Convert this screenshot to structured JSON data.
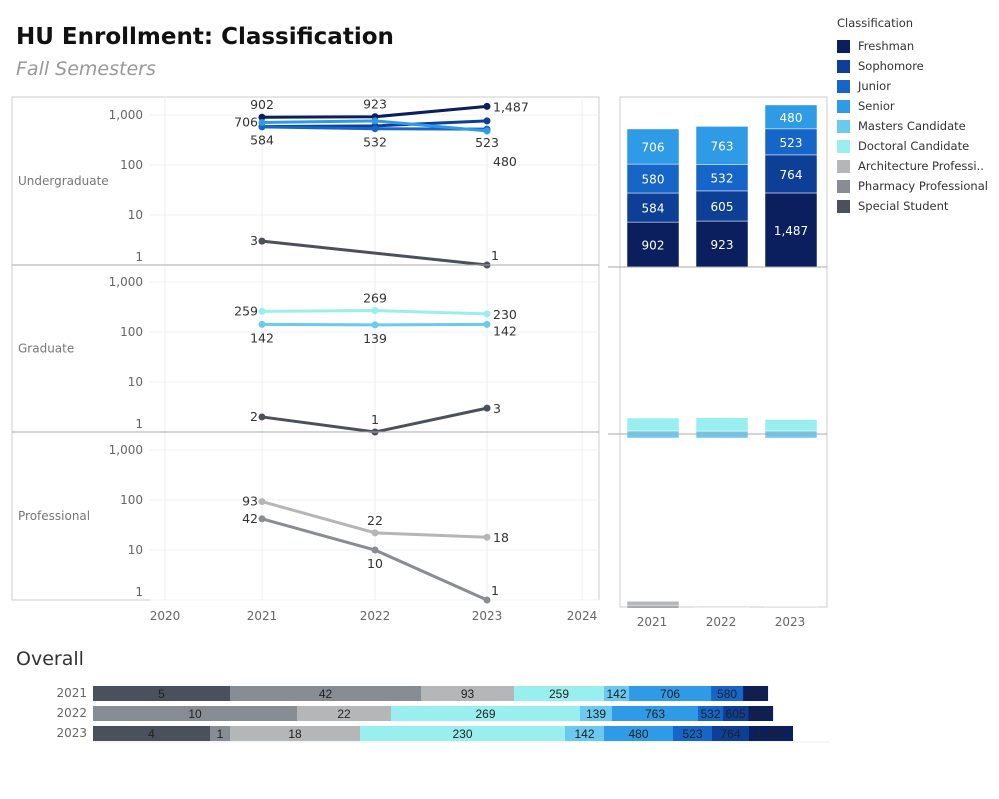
{
  "title": "HU Enrollment: Classification",
  "subtitle": "Fall Semesters",
  "overall_title": "Overall",
  "legend": {
    "title": "Classification",
    "items": [
      {
        "name": "Freshman",
        "color": "#0b1f5e"
      },
      {
        "name": "Sophomore",
        "color": "#0c3f95"
      },
      {
        "name": "Junior",
        "color": "#1566c8"
      },
      {
        "name": "Senior",
        "color": "#2f9ae6"
      },
      {
        "name": "Masters Candidate",
        "color": "#6ac9ee"
      },
      {
        "name": "Doctoral Candidate",
        "color": "#98efee"
      },
      {
        "name": "Architecture Professi..",
        "color": "#b4b6b7"
      },
      {
        "name": "Pharmacy Professional",
        "color": "#878d92"
      },
      {
        "name": "Special Student",
        "color": "#4a505c"
      }
    ]
  },
  "chart_data": {
    "type": "line",
    "years": [
      "2021",
      "2022",
      "2023"
    ],
    "x_ticks": [
      "2020",
      "2021",
      "2022",
      "2023",
      "2024"
    ],
    "y_ticks": [
      "1,000",
      "100",
      "10",
      "1"
    ],
    "y_scale": "log",
    "panels": [
      {
        "label": "Undergraduate",
        "series": [
          {
            "name": "Freshman",
            "values": [
              902,
              923,
              1487
            ]
          },
          {
            "name": "Sophomore",
            "values": [
              584,
              605,
              764
            ]
          },
          {
            "name": "Junior",
            "values": [
              580,
              532,
              523
            ]
          },
          {
            "name": "Senior",
            "values": [
              706,
              763,
              480
            ]
          },
          {
            "name": "Special Student",
            "values": [
              3,
              null,
              1
            ]
          }
        ],
        "labels": [
          [
            "902",
            0,
            902,
            "above"
          ],
          [
            "923",
            1,
            923,
            "above"
          ],
          [
            "1,487",
            2,
            1487,
            "right"
          ],
          [
            "706",
            0,
            706,
            "left"
          ],
          [
            "584",
            0,
            584,
            "below"
          ],
          [
            "532",
            1,
            532,
            "below"
          ],
          [
            "523",
            2,
            523,
            "below"
          ],
          [
            "480",
            2,
            480,
            "right"
          ],
          [
            "3",
            0,
            3,
            "left"
          ],
          [
            "1",
            2,
            1,
            "aboveright"
          ]
        ],
        "stack": [
          [
            902,
            584,
            580,
            706
          ],
          [
            923,
            605,
            532,
            763
          ],
          [
            1487,
            764,
            523,
            480
          ]
        ],
        "stack_labels": true
      },
      {
        "label": "Graduate",
        "series": [
          {
            "name": "Doctoral Candidate",
            "values": [
              259,
              269,
              230
            ]
          },
          {
            "name": "Masters Candidate",
            "values": [
              142,
              139,
              142
            ]
          },
          {
            "name": "Special Student",
            "values": [
              2,
              1,
              3
            ]
          }
        ],
        "labels": [
          [
            "259",
            0,
            259,
            "left"
          ],
          [
            "269",
            1,
            269,
            "above"
          ],
          [
            "230",
            2,
            230,
            "right"
          ],
          [
            "142",
            0,
            142,
            "below"
          ],
          [
            "139",
            1,
            139,
            "below"
          ],
          [
            "142",
            2,
            142,
            "right"
          ],
          [
            "2",
            0,
            2,
            "left"
          ],
          [
            "1",
            1,
            1,
            "above"
          ],
          [
            "3",
            2,
            3,
            "right"
          ]
        ],
        "stack": [
          [
            142,
            259
          ],
          [
            139,
            269
          ],
          [
            142,
            230
          ]
        ]
      },
      {
        "label": "Professional",
        "series": [
          {
            "name": "Architecture Professional",
            "values": [
              93,
              22,
              18
            ]
          },
          {
            "name": "Pharmacy Professional",
            "values": [
              42,
              10,
              1
            ]
          }
        ],
        "labels": [
          [
            "93",
            0,
            93,
            "left"
          ],
          [
            "22",
            1,
            22,
            "above"
          ],
          [
            "18",
            2,
            18,
            "right"
          ],
          [
            "42",
            0,
            42,
            "left"
          ],
          [
            "10",
            1,
            10,
            "below"
          ],
          [
            "1",
            2,
            1,
            "aboveright"
          ]
        ],
        "stack": [
          [
            42,
            93
          ],
          [
            10,
            22
          ],
          [
            1,
            18
          ]
        ]
      }
    ],
    "overall": [
      {
        "year": "2021",
        "segments": [
          [
            "5",
            8,
            137
          ],
          [
            "42",
            7,
            191
          ],
          [
            "93",
            6,
            93
          ],
          [
            "259",
            5,
            90
          ],
          [
            "142",
            4,
            16
          ],
          [
            "706",
            3,
            82
          ],
          [
            "580",
            2,
            32
          ],
          [
            "902",
            0,
            17
          ]
        ]
      },
      {
        "year": "2022",
        "segments": [
          [
            "10",
            7,
            204
          ],
          [
            "22",
            6,
            94
          ],
          [
            "269",
            5,
            189
          ],
          [
            "139",
            4,
            32
          ],
          [
            "763",
            3,
            86
          ],
          [
            "532",
            2,
            20
          ],
          [
            "605",
            1,
            22
          ],
          [
            "923",
            0,
            18
          ]
        ]
      },
      {
        "year": "2023",
        "segments": [
          [
            "4",
            8,
            117
          ],
          [
            "1",
            7,
            20
          ],
          [
            "18",
            6,
            130
          ],
          [
            "230",
            5,
            205
          ],
          [
            "142",
            4,
            39
          ],
          [
            "480",
            3,
            69
          ],
          [
            "523",
            2,
            39
          ],
          [
            "764",
            1,
            37
          ],
          [
            "1,487",
            0,
            44
          ]
        ]
      }
    ]
  }
}
